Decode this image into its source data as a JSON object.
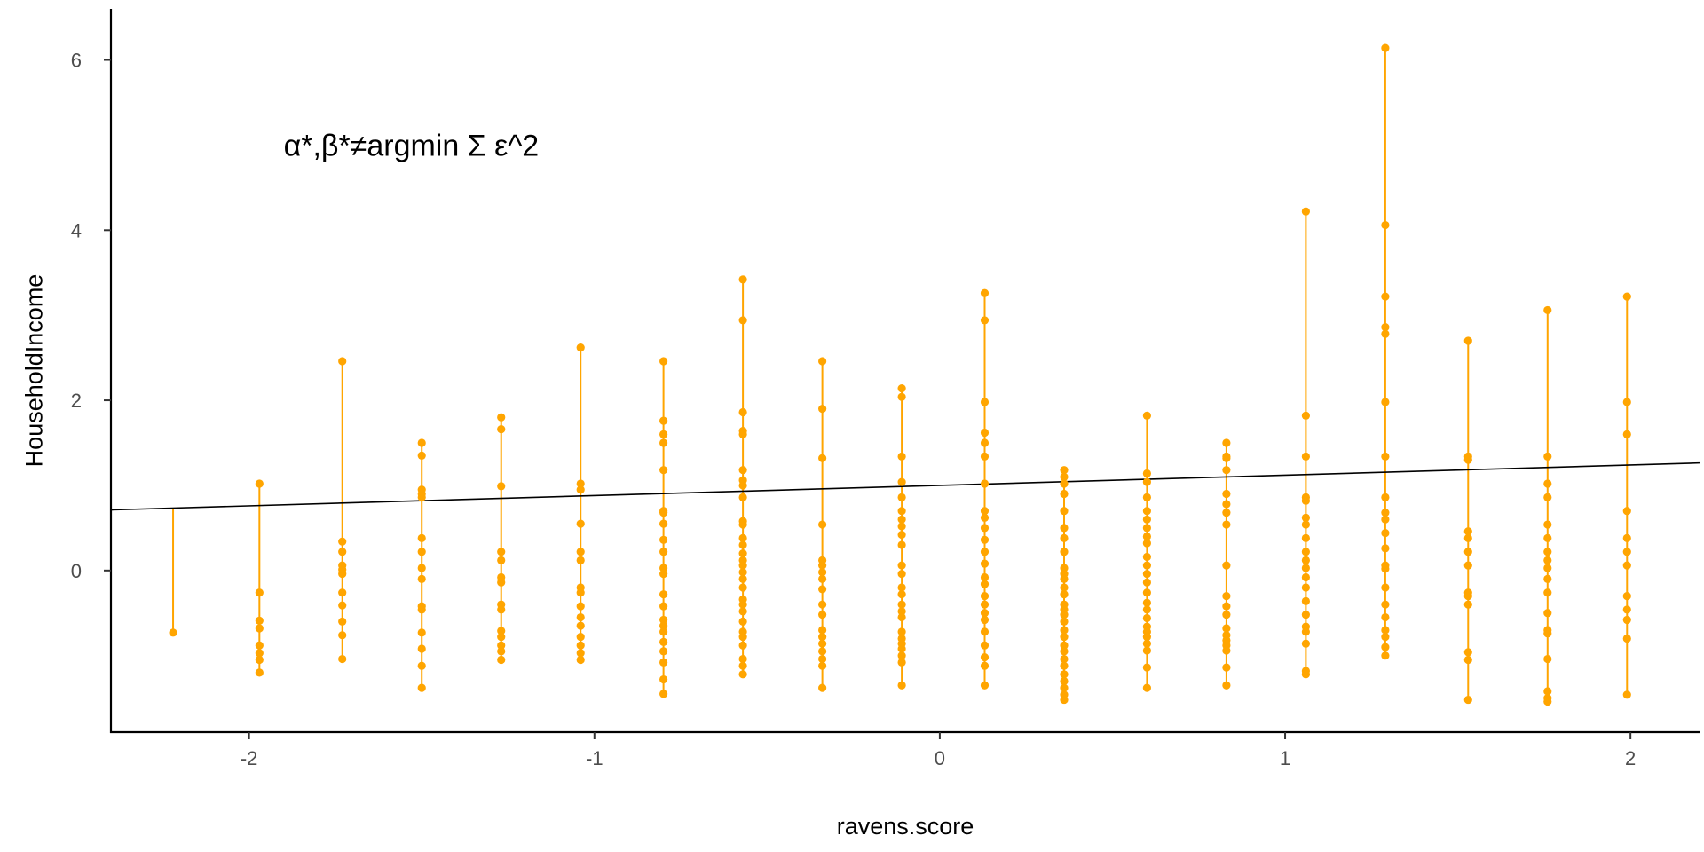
{
  "chart_data": {
    "type": "scatter",
    "title": "",
    "xlabel": "ravens.score",
    "ylabel": "HouseholdIncome",
    "xlim": [
      -2.4,
      2.2
    ],
    "ylim": [
      -1.9,
      6.6
    ],
    "x_ticks": [
      -2,
      -1,
      0,
      1,
      2
    ],
    "y_ticks": [
      0,
      2,
      4,
      6
    ],
    "grid": false,
    "legend": "none",
    "annotation": "α*,β*≠argmin Σ ε^2",
    "annotation_position": [
      -1.9,
      5.0
    ],
    "point_color": "#FFA500",
    "line_color": "#000000",
    "fit_line": {
      "intercept": 1.0,
      "slope": 0.12
    },
    "groups": [
      {
        "x": -2.22,
        "ys": [
          -0.73
        ]
      },
      {
        "x": -1.97,
        "ys": [
          1.02,
          -0.26,
          -0.59,
          -0.68,
          -0.88,
          -0.97,
          -1.05,
          -1.2
        ]
      },
      {
        "x": -1.73,
        "ys": [
          2.46,
          0.34,
          0.22,
          0.06,
          0.01,
          -0.04,
          -0.26,
          -0.41,
          -0.6,
          -0.76,
          -1.04
        ]
      },
      {
        "x": -1.5,
        "ys": [
          1.5,
          1.35,
          0.95,
          0.9,
          0.86,
          0.38,
          0.22,
          0.03,
          -0.1,
          -0.42,
          -0.46,
          -0.73,
          -0.92,
          -1.12,
          -1.38
        ]
      },
      {
        "x": -1.27,
        "ys": [
          1.8,
          1.66,
          0.99,
          0.22,
          0.12,
          -0.08,
          -0.14,
          -0.4,
          -0.46,
          -0.71,
          -0.78,
          -0.88,
          -0.95,
          -1.05
        ]
      },
      {
        "x": -1.04,
        "ys": [
          2.62,
          1.02,
          0.95,
          0.55,
          0.22,
          0.12,
          -0.2,
          -0.26,
          -0.42,
          -0.55,
          -0.65,
          -0.78,
          -0.88,
          -0.97,
          -1.05
        ]
      },
      {
        "x": -0.8,
        "ys": [
          2.46,
          1.76,
          1.6,
          1.5,
          1.18,
          0.7,
          0.68,
          0.55,
          0.36,
          0.22,
          0.03,
          -0.04,
          -0.28,
          -0.42,
          -0.58,
          -0.65,
          -0.72,
          -0.84,
          -0.95,
          -1.08,
          -1.28,
          -1.45
        ]
      },
      {
        "x": -0.57,
        "ys": [
          3.42,
          2.94,
          1.86,
          1.64,
          1.6,
          1.18,
          1.06,
          1.0,
          0.86,
          0.58,
          0.54,
          0.38,
          0.3,
          0.2,
          0.12,
          0.06,
          -0.02,
          -0.1,
          -0.2,
          -0.34,
          -0.4,
          -0.48,
          -0.6,
          -0.72,
          -0.78,
          -0.88,
          -1.04,
          -1.12,
          -1.22
        ]
      },
      {
        "x": -0.34,
        "ys": [
          2.46,
          1.9,
          1.32,
          0.54,
          0.12,
          0.06,
          -0.02,
          -0.1,
          -0.22,
          -0.4,
          -0.52,
          -0.7,
          -0.78,
          -0.86,
          -0.95,
          -1.04,
          -1.12,
          -1.38
        ]
      },
      {
        "x": -0.11,
        "ys": [
          2.14,
          2.04,
          1.34,
          1.04,
          0.86,
          0.7,
          0.6,
          0.52,
          0.42,
          0.3,
          0.06,
          -0.04,
          -0.2,
          -0.28,
          -0.4,
          -0.48,
          -0.55,
          -0.72,
          -0.8,
          -0.86,
          -0.92,
          -1.0,
          -1.08,
          -1.35
        ]
      },
      {
        "x": 0.13,
        "ys": [
          3.26,
          2.94,
          1.98,
          1.62,
          1.5,
          1.34,
          1.02,
          0.7,
          0.62,
          0.5,
          0.36,
          0.22,
          0.08,
          -0.08,
          -0.16,
          -0.3,
          -0.4,
          -0.5,
          -0.58,
          -0.72,
          -0.88,
          -1.02,
          -1.12,
          -1.35
        ]
      },
      {
        "x": 0.36,
        "ys": [
          1.18,
          1.1,
          1.02,
          0.9,
          0.7,
          0.5,
          0.38,
          0.22,
          0.03,
          -0.04,
          -0.1,
          -0.2,
          -0.28,
          -0.4,
          -0.46,
          -0.52,
          -0.6,
          -0.7,
          -0.78,
          -0.88,
          -0.95,
          -1.04,
          -1.12,
          -1.22,
          -1.3,
          -1.38,
          -1.46,
          -1.52
        ]
      },
      {
        "x": 0.6,
        "ys": [
          1.82,
          1.14,
          1.04,
          0.86,
          0.7,
          0.6,
          0.5,
          0.4,
          0.32,
          0.16,
          0.06,
          -0.04,
          -0.14,
          -0.26,
          -0.38,
          -0.46,
          -0.56,
          -0.66,
          -0.72,
          -0.78,
          -0.86,
          -0.94,
          -1.14,
          -1.38
        ]
      },
      {
        "x": 0.83,
        "ys": [
          1.5,
          1.34,
          1.32,
          1.18,
          0.9,
          0.78,
          0.68,
          0.54,
          0.06,
          -0.3,
          -0.42,
          -0.52,
          -0.68,
          -0.76,
          -0.82,
          -0.88,
          -0.94,
          -1.14,
          -1.35
        ]
      },
      {
        "x": 1.06,
        "ys": [
          4.22,
          1.82,
          1.34,
          0.86,
          0.82,
          0.62,
          0.54,
          0.38,
          0.22,
          0.12,
          0.03,
          -0.08,
          -0.2,
          -0.36,
          -0.52,
          -0.66,
          -0.72,
          -0.86,
          -1.18,
          -1.22
        ]
      },
      {
        "x": 1.29,
        "ys": [
          6.14,
          4.06,
          3.22,
          2.86,
          2.78,
          1.98,
          1.34,
          0.86,
          0.68,
          0.6,
          0.44,
          0.26,
          0.06,
          0.02,
          -0.2,
          -0.4,
          -0.55,
          -0.7,
          -0.78,
          -0.9,
          -1.0
        ]
      },
      {
        "x": 1.53,
        "ys": [
          2.7,
          1.34,
          1.3,
          0.46,
          0.38,
          0.22,
          0.06,
          -0.26,
          -0.3,
          -0.4,
          -0.96,
          -1.05,
          -1.52
        ]
      },
      {
        "x": 1.76,
        "ys": [
          3.06,
          1.34,
          1.02,
          0.86,
          0.54,
          0.38,
          0.22,
          0.12,
          0.03,
          -0.1,
          -0.26,
          -0.5,
          -0.7,
          -0.74,
          -1.04,
          -1.42,
          -1.5,
          -1.54
        ]
      },
      {
        "x": 1.99,
        "ys": [
          3.22,
          1.98,
          1.6,
          0.7,
          0.38,
          0.22,
          0.06,
          -0.3,
          -0.46,
          -0.58,
          -0.8,
          -1.46
        ]
      }
    ]
  }
}
